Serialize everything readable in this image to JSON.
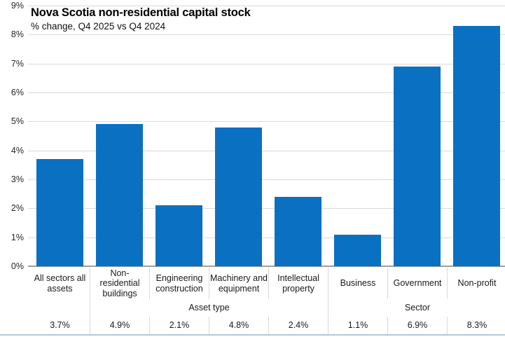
{
  "header": {
    "title": "Nova Scotia non-residential capital stock",
    "subtitle": "% change, Q4 2025 vs Q4 2024"
  },
  "colors": {
    "bar": "#0a70c2",
    "gridline": "#d9d9d9",
    "axis_line": "#9e9e9e",
    "table_divider": "#d9d9d9",
    "bottom_border": "#b4c7dc"
  },
  "chart_data": {
    "type": "bar",
    "title": "Nova Scotia non-residential capital stock",
    "subtitle": "% change, Q4 2025 vs Q4 2024",
    "categories": [
      "All sectors all\nassets",
      "Non-\nresidential\nbuildings",
      "Engineering\nconstruction",
      "Machinery and\nequipment",
      "Intellectual\nproperty",
      "Business",
      "Government",
      "Non-profit"
    ],
    "values": [
      3.7,
      4.9,
      2.1,
      4.8,
      2.4,
      1.1,
      6.9,
      8.3
    ],
    "value_labels": [
      "3.7%",
      "4.9%",
      "2.1%",
      "4.8%",
      "2.4%",
      "1.1%",
      "6.9%",
      "8.3%"
    ],
    "groups": [
      {
        "label": "",
        "span": 1
      },
      {
        "label": "Asset type",
        "span": 4
      },
      {
        "label": "Sector",
        "span": 3
      }
    ],
    "y_axis": {
      "min": 0,
      "max": 9,
      "step": 1,
      "tick_labels": [
        "0%",
        "1%",
        "2%",
        "3%",
        "4%",
        "5%",
        "6%",
        "7%",
        "8%",
        "9%"
      ]
    },
    "grid": true,
    "legend": false,
    "bar_color": "#0a70c2"
  }
}
